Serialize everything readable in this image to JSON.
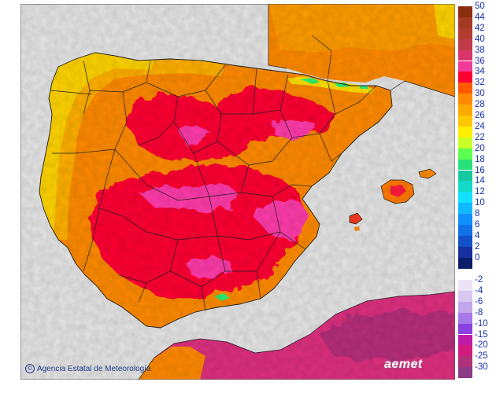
{
  "colors": {
    "sea": "#e6e6e6",
    "border": "#1e1e1e",
    "hot_orange": "#ff7a00",
    "warm_orange": "#ffa400",
    "yellow": "#ffc400",
    "red": "#ff0028",
    "magenta": "#ff33aa",
    "africa_pink": "#e0337e",
    "africa_dark": "#b82f7a",
    "cool_green": "#2ff06e"
  },
  "credit": {
    "icon": "copyright-icon",
    "text": "Agencia Estatal de Meteorología"
  },
  "logo": {
    "text": "aemet"
  },
  "legend": {
    "positive": [
      {
        "label": "50",
        "color": "#8b2e10"
      },
      {
        "label": "44",
        "color": "#a53a22"
      },
      {
        "label": "42",
        "color": "#b23d2e"
      },
      {
        "label": "40",
        "color": "#c03a48"
      },
      {
        "label": "38",
        "color": "#d8356a"
      },
      {
        "label": "36",
        "color": "#f03a9a"
      },
      {
        "label": "34",
        "color": "#ff0030"
      },
      {
        "label": "32",
        "color": "#ff5a00"
      },
      {
        "label": "30",
        "color": "#ff8a00"
      },
      {
        "label": "28",
        "color": "#ffa800"
      },
      {
        "label": "26",
        "color": "#ffc800"
      },
      {
        "label": "24",
        "color": "#fff000"
      },
      {
        "label": "22",
        "color": "#c8ff28"
      },
      {
        "label": "20",
        "color": "#5aff50"
      },
      {
        "label": "18",
        "color": "#28e07a"
      },
      {
        "label": "16",
        "color": "#16c8a0"
      },
      {
        "label": "14",
        "color": "#14d8c8"
      },
      {
        "label": "12",
        "color": "#12e0ff"
      },
      {
        "label": "10",
        "color": "#10b8ff"
      },
      {
        "label": "8",
        "color": "#1090ff"
      },
      {
        "label": "6",
        "color": "#1270e8"
      },
      {
        "label": "4",
        "color": "#1450c8"
      },
      {
        "label": "2",
        "color": "#1630a0"
      },
      {
        "label": "0",
        "color": "#0a1c6a"
      }
    ],
    "negative": [
      {
        "label": "-2",
        "color": "#ece4f6"
      },
      {
        "label": "-4",
        "color": "#d8c8f0"
      },
      {
        "label": "-6",
        "color": "#c4a6ec"
      },
      {
        "label": "-8",
        "color": "#a478e8"
      },
      {
        "label": "-10",
        "color": "#8a40e0"
      },
      {
        "label": "-15",
        "color": "#c01aa8"
      },
      {
        "label": "-20",
        "color": "#d21a80"
      },
      {
        "label": "-25",
        "color": "#b0307a"
      },
      {
        "label": "-30",
        "color": "#8c3a86"
      }
    ]
  }
}
